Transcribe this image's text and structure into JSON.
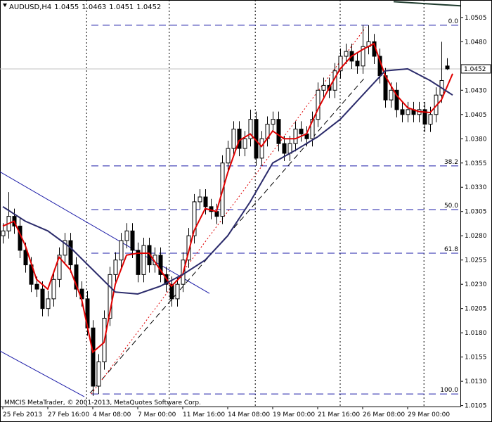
{
  "chart_data": {
    "type": "candlestick",
    "symbol": "AUDUSD,H4",
    "footer": "MMCIS MetaTrader, © 2001-2013, MetaQuotes Software Corp.",
    "categories": [
      "25 Feb 2013",
      null,
      null,
      null,
      null,
      null,
      null,
      null,
      "27 Feb 16:00",
      null,
      null,
      null,
      null,
      null,
      null,
      null,
      "4 Mar 08:00",
      null,
      null,
      null,
      null,
      null,
      null,
      null,
      "7 Mar 00:00",
      null,
      null,
      null,
      null,
      null,
      null,
      null,
      "11 Mar 16:00",
      null,
      null,
      null,
      null,
      null,
      null,
      null,
      "14 Mar 08:00",
      null,
      null,
      null,
      null,
      null,
      null,
      null,
      "19 Mar 00:00",
      null,
      null,
      null,
      null,
      null,
      null,
      null,
      "21 Mar 16:00",
      null,
      null,
      null,
      null,
      null,
      null,
      null,
      "26 Mar 08:00",
      null,
      null,
      null,
      null,
      null,
      null,
      null,
      "29 Mar 00:00",
      null,
      null,
      null,
      null,
      null,
      null,
      null
    ],
    "open": [
      1.028,
      1.0285,
      1.03,
      1.029,
      1.0265,
      1.025,
      1.023,
      1.0225,
      1.0205,
      1.0215,
      1.0235,
      1.026,
      1.0275,
      1.025,
      1.0225,
      1.0215,
      1.0185,
      1.0125,
      1.015,
      1.0195,
      1.024,
      1.0255,
      1.0275,
      1.0285,
      1.0265,
      1.024,
      1.027,
      1.025,
      1.026,
      1.024,
      1.023,
      1.0215,
      1.023,
      1.0255,
      1.028,
      1.0315,
      1.032,
      1.031,
      1.0305,
      1.03,
      1.0355,
      1.037,
      1.039,
      1.037,
      1.038,
      1.04,
      1.036,
      1.038,
      1.0395,
      1.04,
      1.0375,
      1.0365,
      1.0375,
      1.039,
      1.0385,
      1.038,
      1.04,
      1.043,
      1.0435,
      1.043,
      1.045,
      1.0465,
      1.047,
      1.046,
      1.0455,
      1.0475,
      1.048,
      1.0465,
      1.0445,
      1.042,
      1.043,
      1.041,
      1.0405,
      1.041,
      1.0405,
      1.041,
      1.0395,
      1.0405,
      1.0425,
      1.0455
    ],
    "high": [
      1.0293,
      1.0325,
      1.0308,
      1.0298,
      1.0273,
      1.0258,
      1.0238,
      1.0233,
      1.0223,
      1.0243,
      1.0268,
      1.0283,
      1.0283,
      1.0258,
      1.0233,
      1.0223,
      1.0193,
      1.0158,
      1.0203,
      1.0248,
      1.0263,
      1.0283,
      1.0293,
      1.0293,
      1.0273,
      1.0278,
      1.0278,
      1.0268,
      1.0268,
      1.0248,
      1.0238,
      1.0238,
      1.0263,
      1.0288,
      1.0323,
      1.0328,
      1.0328,
      1.0318,
      1.0313,
      1.0363,
      1.0378,
      1.0398,
      1.0398,
      1.0388,
      1.041,
      1.0408,
      1.0388,
      1.0403,
      1.0408,
      1.0408,
      1.0383,
      1.0383,
      1.0398,
      1.0398,
      1.0393,
      1.0408,
      1.0438,
      1.0443,
      1.0443,
      1.0458,
      1.0473,
      1.0478,
      1.0478,
      1.0468,
      1.0497,
      1.0497,
      1.0488,
      1.0473,
      1.0453,
      1.0438,
      1.0438,
      1.0418,
      1.0418,
      1.0418,
      1.0418,
      1.0418,
      1.0413,
      1.0433,
      1.048,
      1.0463
    ],
    "low": [
      1.0272,
      1.0277,
      1.0282,
      1.0257,
      1.0242,
      1.0222,
      1.0217,
      1.0197,
      1.0197,
      1.0207,
      1.0227,
      1.0252,
      1.0242,
      1.0217,
      1.0207,
      1.0177,
      1.0115,
      1.0117,
      1.0142,
      1.0187,
      1.0232,
      1.0247,
      1.0267,
      1.0257,
      1.0232,
      1.0232,
      1.0242,
      1.0242,
      1.0232,
      1.0222,
      1.0207,
      1.0207,
      1.0222,
      1.0247,
      1.0272,
      1.0307,
      1.0302,
      1.0297,
      1.0292,
      1.0292,
      1.0347,
      1.0362,
      1.0362,
      1.0362,
      1.0372,
      1.0352,
      1.0352,
      1.0372,
      1.0387,
      1.0367,
      1.0357,
      1.0357,
      1.0367,
      1.0377,
      1.0372,
      1.0372,
      1.0392,
      1.0422,
      1.0422,
      1.0422,
      1.0442,
      1.0457,
      1.0452,
      1.0447,
      1.0447,
      1.0467,
      1.0457,
      1.0437,
      1.0412,
      1.0412,
      1.0402,
      1.0397,
      1.0397,
      1.0397,
      1.0397,
      1.0387,
      1.0387,
      1.0397,
      1.0417,
      1.0451
    ],
    "close": [
      1.0285,
      1.03,
      1.029,
      1.0265,
      1.025,
      1.023,
      1.0225,
      1.0205,
      1.0215,
      1.0235,
      1.026,
      1.0275,
      1.025,
      1.0225,
      1.0215,
      1.0185,
      1.0125,
      1.015,
      1.0195,
      1.024,
      1.0255,
      1.0275,
      1.0285,
      1.0265,
      1.024,
      1.027,
      1.025,
      1.026,
      1.024,
      1.023,
      1.0215,
      1.023,
      1.0255,
      1.028,
      1.0315,
      1.032,
      1.031,
      1.0305,
      1.03,
      1.0355,
      1.037,
      1.039,
      1.037,
      1.038,
      1.04,
      1.036,
      1.038,
      1.0395,
      1.04,
      1.0375,
      1.0365,
      1.0375,
      1.039,
      1.0385,
      1.038,
      1.04,
      1.043,
      1.0435,
      1.043,
      1.045,
      1.0465,
      1.047,
      1.046,
      1.0455,
      1.0475,
      1.048,
      1.0465,
      1.0445,
      1.042,
      1.043,
      1.041,
      1.0405,
      1.041,
      1.0405,
      1.041,
      1.0395,
      1.0405,
      1.0425,
      1.044,
      1.0452
    ],
    "up_color": "#ffffff",
    "down_color": "#000000",
    "ylim": [
      1.0104,
      1.0523
    ],
    "yticks": [
      1.0505,
      {
        "value": 1.048,
        "label": "1.0480"
      },
      {
        "value": 1.043,
        "label": "1.0430"
      },
      1.0405,
      {
        "value": 1.038,
        "label": "1.0380"
      },
      1.0355,
      {
        "value": 1.033,
        "label": "1.0330"
      },
      1.0305,
      {
        "value": 1.028,
        "label": "1.0280"
      },
      1.0255,
      {
        "value": 1.023,
        "label": "1.0230"
      },
      1.0205,
      {
        "value": 1.018,
        "label": "1.0180"
      },
      1.0155,
      {
        "value": 1.013,
        "label": "1.0130"
      },
      1.0105
    ],
    "separators": [
      14.9,
      29.6,
      44.9,
      60,
      74.9
    ],
    "indicators": [
      {
        "color": "#e00000",
        "x": [
          0,
          2,
          4,
          6,
          8,
          10,
          12,
          14,
          16,
          18,
          20,
          22,
          24,
          26,
          28,
          30,
          32,
          34,
          36,
          38,
          40,
          42,
          44,
          46,
          48,
          50,
          52,
          54,
          56,
          58,
          60,
          62,
          64,
          66,
          68,
          70,
          72,
          74,
          76,
          78,
          80
        ],
        "values": [
          1.029,
          1.0295,
          1.027,
          1.0235,
          1.0225,
          1.0258,
          1.0245,
          1.0215,
          1.016,
          1.017,
          1.023,
          1.026,
          1.0262,
          1.0262,
          1.0245,
          1.0228,
          1.024,
          1.0285,
          1.0308,
          1.0305,
          1.0345,
          1.0378,
          1.0385,
          1.0372,
          1.0388,
          1.038,
          1.038,
          1.0385,
          1.041,
          1.0432,
          1.0452,
          1.0465,
          1.0472,
          1.0478,
          1.0445,
          1.0425,
          1.0412,
          1.0408,
          1.0407,
          1.042,
          1.0447
        ]
      },
      {
        "color": "#2b2b6b",
        "x": [
          0,
          4,
          8,
          12,
          16,
          20,
          24,
          28,
          32,
          36,
          40,
          44,
          48,
          52,
          56,
          60,
          64,
          68,
          72,
          76,
          80
        ],
        "values": [
          1.031,
          1.0295,
          1.0285,
          1.0268,
          1.0245,
          1.0222,
          1.022,
          1.0228,
          1.024,
          1.0255,
          1.028,
          1.0315,
          1.0355,
          1.0368,
          1.0382,
          1.04,
          1.0425,
          1.045,
          1.0452,
          1.044,
          1.0425
        ]
      }
    ],
    "trendlines": [
      {
        "color": "#1c1ca8",
        "dash": "none",
        "x": [
          -0.5,
          36.75
        ],
        "values": [
          1.03459,
          1.02206
        ]
      },
      {
        "color": "#1c1ca8",
        "dash": "none",
        "x": [
          -0.5,
          14.5
        ],
        "values": [
          1.01612,
          1.01141
        ]
      },
      {
        "color": "#000000",
        "dash": "8 5",
        "x": [
          15.5,
          64.5
        ],
        "values": [
          1.01177,
          1.04438
        ]
      },
      {
        "color": "#e00000",
        "dash": "2 3",
        "x": [
          15.75,
          64.5
        ],
        "values": [
          1.0117,
          1.04945
        ]
      },
      {
        "color": "#1f3b2e",
        "dash": "none",
        "x": [
          69.5,
          81.4
        ],
        "values": [
          1.05213,
          1.0517
        ]
      }
    ],
    "fibonacci": {
      "color": "#1c1ca8",
      "start": 15.75,
      "levels": [
        {
          "value": 1.0497,
          "label": "0.0"
        },
        {
          "value": 1.0352,
          "label": "38.2"
        },
        {
          "value": 1.0307,
          "label": "50.0"
        },
        {
          "value": 1.0262,
          "label": "61.8"
        },
        {
          "value": 1.0117,
          "label": "100.0"
        }
      ]
    }
  }
}
